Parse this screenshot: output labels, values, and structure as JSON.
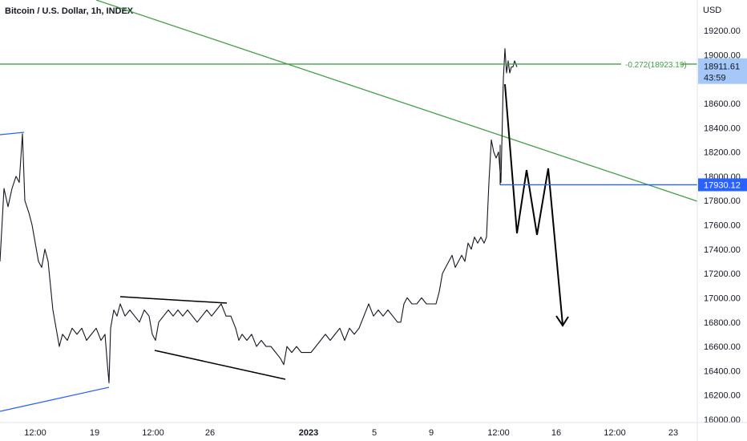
{
  "header": {
    "title": "Bitcoin / U.S. Dollar, 1h, INDEX",
    "currency": "USD"
  },
  "chart_data": {
    "type": "line",
    "title": "Bitcoin / U.S. Dollar, 1h, INDEX",
    "ylabel": "USD",
    "ylim": [
      16000,
      19200
    ],
    "y_ticks": [
      "19200.00",
      "19000.00",
      "18800.00",
      "18600.00",
      "18400.00",
      "18200.00",
      "18000.00",
      "17800.00",
      "17600.00",
      "17400.00",
      "17200.00",
      "17000.00",
      "16800.00",
      "16600.00",
      "16400.00",
      "16200.00",
      "16000.00"
    ],
    "x_ticks": [
      {
        "label": "12:00",
        "bold": false
      },
      {
        "label": "19",
        "bold": false
      },
      {
        "label": "12:00",
        "bold": false
      },
      {
        "label": "26",
        "bold": false
      },
      {
        "label": "2023",
        "bold": true
      },
      {
        "label": "5",
        "bold": false
      },
      {
        "label": "9",
        "bold": false
      },
      {
        "label": "12:00",
        "bold": false
      },
      {
        "label": "16",
        "bold": false
      },
      {
        "label": "12:00",
        "bold": false
      },
      {
        "label": "23",
        "bold": false
      }
    ],
    "price_path": [
      [
        0,
        17300
      ],
      [
        5,
        17900
      ],
      [
        10,
        17750
      ],
      [
        15,
        17900
      ],
      [
        20,
        18000
      ],
      [
        24,
        17950
      ],
      [
        28,
        18350
      ],
      [
        31,
        17800
      ],
      [
        36,
        17700
      ],
      [
        40,
        17600
      ],
      [
        44,
        17450
      ],
      [
        48,
        17300
      ],
      [
        52,
        17250
      ],
      [
        56,
        17400
      ],
      [
        60,
        17300
      ],
      [
        63,
        17100
      ],
      [
        66,
        16900
      ],
      [
        70,
        16750
      ],
      [
        74,
        16600
      ],
      [
        78,
        16700
      ],
      [
        84,
        16650
      ],
      [
        90,
        16750
      ],
      [
        96,
        16700
      ],
      [
        102,
        16750
      ],
      [
        108,
        16650
      ],
      [
        114,
        16700
      ],
      [
        120,
        16750
      ],
      [
        126,
        16650
      ],
      [
        131,
        16700
      ],
      [
        134,
        16450
      ],
      [
        136,
        16300
      ],
      [
        138,
        16750
      ],
      [
        142,
        16900
      ],
      [
        146,
        16850
      ],
      [
        150,
        16950
      ],
      [
        156,
        16850
      ],
      [
        162,
        16900
      ],
      [
        168,
        16850
      ],
      [
        174,
        16800
      ],
      [
        180,
        16900
      ],
      [
        186,
        16850
      ],
      [
        190,
        16700
      ],
      [
        194,
        16650
      ],
      [
        198,
        16800
      ],
      [
        204,
        16850
      ],
      [
        210,
        16900
      ],
      [
        216,
        16850
      ],
      [
        222,
        16900
      ],
      [
        228,
        16850
      ],
      [
        234,
        16900
      ],
      [
        240,
        16850
      ],
      [
        246,
        16800
      ],
      [
        252,
        16850
      ],
      [
        258,
        16900
      ],
      [
        264,
        16850
      ],
      [
        270,
        16900
      ],
      [
        276,
        16950
      ],
      [
        282,
        16850
      ],
      [
        288,
        16850
      ],
      [
        294,
        16750
      ],
      [
        298,
        16650
      ],
      [
        302,
        16700
      ],
      [
        308,
        16650
      ],
      [
        314,
        16700
      ],
      [
        320,
        16600
      ],
      [
        326,
        16650
      ],
      [
        332,
        16600
      ],
      [
        338,
        16600
      ],
      [
        344,
        16550
      ],
      [
        350,
        16500
      ],
      [
        354,
        16450
      ],
      [
        358,
        16600
      ],
      [
        364,
        16550
      ],
      [
        370,
        16600
      ],
      [
        376,
        16550
      ],
      [
        382,
        16550
      ],
      [
        388,
        16550
      ],
      [
        394,
        16600
      ],
      [
        400,
        16650
      ],
      [
        406,
        16700
      ],
      [
        412,
        16650
      ],
      [
        418,
        16700
      ],
      [
        424,
        16750
      ],
      [
        430,
        16650
      ],
      [
        436,
        16750
      ],
      [
        442,
        16700
      ],
      [
        448,
        16750
      ],
      [
        454,
        16850
      ],
      [
        460,
        16950
      ],
      [
        466,
        16850
      ],
      [
        472,
        16900
      ],
      [
        478,
        16850
      ],
      [
        484,
        16900
      ],
      [
        490,
        16850
      ],
      [
        496,
        16800
      ],
      [
        500,
        16800
      ],
      [
        504,
        16950
      ],
      [
        508,
        17000
      ],
      [
        514,
        16950
      ],
      [
        520,
        16950
      ],
      [
        526,
        17000
      ],
      [
        532,
        16950
      ],
      [
        538,
        16950
      ],
      [
        544,
        16950
      ],
      [
        548,
        17050
      ],
      [
        552,
        17200
      ],
      [
        556,
        17250
      ],
      [
        560,
        17300
      ],
      [
        564,
        17350
      ],
      [
        568,
        17250
      ],
      [
        572,
        17300
      ],
      [
        576,
        17350
      ],
      [
        580,
        17300
      ],
      [
        584,
        17450
      ],
      [
        588,
        17400
      ],
      [
        592,
        17500
      ],
      [
        596,
        17450
      ],
      [
        600,
        17500
      ],
      [
        604,
        17450
      ],
      [
        607,
        17500
      ],
      [
        610,
        17950
      ],
      [
        613,
        18300
      ],
      [
        616,
        18200
      ],
      [
        619,
        18150
      ],
      [
        622,
        18200
      ],
      [
        625,
        17950
      ],
      [
        628,
        18800
      ],
      [
        630,
        19050
      ],
      [
        632,
        18850
      ],
      [
        634,
        18950
      ],
      [
        636,
        18850
      ],
      [
        638,
        18900
      ],
      [
        640,
        18900
      ],
      [
        642,
        18950
      ],
      [
        645,
        18900
      ]
    ],
    "levels": [
      {
        "kind": "fib",
        "label": "-0.272(18923.19)",
        "value": 18923.19,
        "color": "#43a047"
      },
      {
        "kind": "horizontal",
        "value": 17930.12,
        "color": "#2962ff"
      }
    ],
    "price_tags": [
      {
        "value": 18911.61,
        "text": "18911.61",
        "subtext": "43:59",
        "color": "#a5c8f9"
      },
      {
        "value": 17930.12,
        "text": "17930.12",
        "color": "#2962ff"
      }
    ],
    "colors": {
      "price": "#131722",
      "trend_green": "#43a047",
      "blue_line": "#2962ff",
      "annotation": "#000000"
    },
    "grid": false
  }
}
